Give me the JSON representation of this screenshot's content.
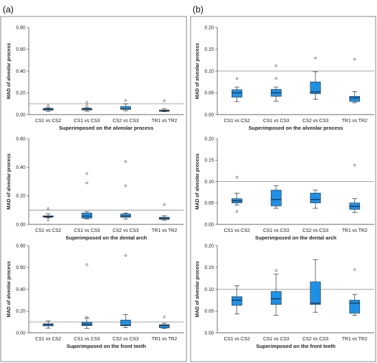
{
  "panels": [
    {
      "label": "(a)"
    },
    {
      "label": "(b)"
    }
  ],
  "colors": {
    "box_fill": "#1e90e6",
    "box_stroke": "#2a2a2a",
    "reference_line": "#888888",
    "frame": "#666666",
    "outlier": "#555555"
  },
  "chart_data": [
    {
      "id": "a1",
      "type": "box",
      "panel": "(a)",
      "title": "",
      "ylabel": "MAD of alveolar process",
      "xlabel": "Superimposed on the alveolar process",
      "ylim": [
        0,
        0.8
      ],
      "yticks": [
        0.0,
        0.2,
        0.4,
        0.6,
        0.8
      ],
      "tick_decimals": 2,
      "reference_line": 0.1,
      "grid": false,
      "categories": [
        "CS1 vs CS2",
        "CS1 vs CS3",
        "CS2 vs CS3",
        "TR1 vs TR2"
      ],
      "boxes": [
        {
          "whisker_low": 0.03,
          "q1": 0.04,
          "median": 0.05,
          "q3": 0.057,
          "whisker_high": 0.063,
          "outliers": [
            0.083
          ]
        },
        {
          "whisker_low": 0.031,
          "q1": 0.042,
          "median": 0.05,
          "q3": 0.058,
          "whisker_high": 0.063,
          "outliers": [
            0.083,
            0.112
          ]
        },
        {
          "whisker_low": 0.035,
          "q1": 0.048,
          "median": 0.052,
          "q3": 0.075,
          "whisker_high": 0.098,
          "outliers": [
            0.13
          ]
        },
        {
          "whisker_low": 0.027,
          "q1": 0.03,
          "median": 0.038,
          "q3": 0.042,
          "whisker_high": 0.053,
          "outliers": [
            0.127
          ]
        }
      ]
    },
    {
      "id": "b1",
      "type": "box",
      "panel": "(b)",
      "title": "",
      "ylabel": "MAD of alveolar process",
      "xlabel": "Superimposed on the alveolar process",
      "ylim": [
        0,
        0.2
      ],
      "yticks": [
        0.0,
        0.05,
        0.1,
        0.15,
        0.2
      ],
      "tick_decimals": 2,
      "reference_line": 0.1,
      "grid": false,
      "categories": [
        "CS1 vs CS2",
        "CS1 vs CS3",
        "CS2 vs CS3",
        "TR1 vs TR2"
      ],
      "boxes": [
        {
          "whisker_low": 0.03,
          "q1": 0.04,
          "median": 0.05,
          "q3": 0.057,
          "whisker_high": 0.063,
          "outliers": [
            0.083
          ]
        },
        {
          "whisker_low": 0.031,
          "q1": 0.042,
          "median": 0.05,
          "q3": 0.058,
          "whisker_high": 0.063,
          "outliers": [
            0.083,
            0.112
          ]
        },
        {
          "whisker_low": 0.035,
          "q1": 0.048,
          "median": 0.052,
          "q3": 0.075,
          "whisker_high": 0.098,
          "outliers": [
            0.13
          ]
        },
        {
          "whisker_low": 0.027,
          "q1": 0.03,
          "median": 0.038,
          "q3": 0.042,
          "whisker_high": 0.053,
          "outliers": [
            0.127
          ]
        }
      ]
    },
    {
      "id": "a2",
      "type": "box",
      "panel": "(a)",
      "title": "",
      "ylabel": "MAD of alveolar process",
      "xlabel": "Superimposed on the dental arch",
      "ylim": [
        0,
        0.6
      ],
      "yticks": [
        0.0,
        0.2,
        0.4,
        0.6
      ],
      "tick_decimals": 2,
      "reference_line": 0.1,
      "grid": false,
      "categories": [
        "CS1 vs CS2",
        "CS1 vs CS3",
        "CS2 vs CS3",
        "TR1 vs TR2"
      ],
      "boxes": [
        {
          "whisker_low": 0.045,
          "q1": 0.05,
          "median": 0.055,
          "q3": 0.06,
          "whisker_high": 0.073,
          "outliers": [
            0.03,
            0.11
          ]
        },
        {
          "whisker_low": 0.038,
          "q1": 0.043,
          "median": 0.058,
          "q3": 0.08,
          "whisker_high": 0.09,
          "outliers": [
            0.29,
            0.355
          ]
        },
        {
          "whisker_low": 0.038,
          "q1": 0.05,
          "median": 0.058,
          "q3": 0.073,
          "whisker_high": 0.08,
          "outliers": [
            0.27,
            0.44
          ]
        },
        {
          "whisker_low": 0.028,
          "q1": 0.035,
          "median": 0.042,
          "q3": 0.05,
          "whisker_high": 0.06,
          "outliers": [
            0.138
          ]
        }
      ]
    },
    {
      "id": "b2",
      "type": "box",
      "panel": "(b)",
      "title": "",
      "ylabel": "MAD of alveolar process",
      "xlabel": "Superimposed on the dental arch",
      "ylim": [
        0,
        0.2
      ],
      "yticks": [
        0.0,
        0.05,
        0.1,
        0.15,
        0.2
      ],
      "tick_decimals": 2,
      "reference_line": 0.1,
      "grid": false,
      "categories": [
        "CS1 vs CS2",
        "CS1 vs CS3",
        "CS2 vs CS3",
        "TR1 vs TR2"
      ],
      "boxes": [
        {
          "whisker_low": 0.045,
          "q1": 0.05,
          "median": 0.055,
          "q3": 0.06,
          "whisker_high": 0.073,
          "outliers": [
            0.03,
            0.11
          ]
        },
        {
          "whisker_low": 0.038,
          "q1": 0.043,
          "median": 0.058,
          "q3": 0.08,
          "whisker_high": 0.09,
          "outliers": []
        },
        {
          "whisker_low": 0.038,
          "q1": 0.05,
          "median": 0.058,
          "q3": 0.073,
          "whisker_high": 0.08,
          "outliers": []
        },
        {
          "whisker_low": 0.028,
          "q1": 0.035,
          "median": 0.042,
          "q3": 0.05,
          "whisker_high": 0.06,
          "outliers": [
            0.138
          ]
        }
      ]
    },
    {
      "id": "a3",
      "type": "box",
      "panel": "(a)",
      "title": "",
      "ylabel": "MAD of alveolar process",
      "xlabel": "Superimposed on the front teeth",
      "ylim": [
        0,
        0.8
      ],
      "yticks": [
        0.0,
        0.2,
        0.4,
        0.6,
        0.8
      ],
      "tick_decimals": 2,
      "reference_line": 0.1,
      "grid": false,
      "categories": [
        "CS1 vs CS2",
        "CS1 vs CS3",
        "CS2 vs CS3",
        "TR1 vs TR2"
      ],
      "boxes": [
        {
          "whisker_low": 0.043,
          "q1": 0.063,
          "median": 0.075,
          "q3": 0.083,
          "whisker_high": 0.108,
          "outliers": []
        },
        {
          "whisker_low": 0.04,
          "q1": 0.065,
          "median": 0.078,
          "q3": 0.095,
          "whisker_high": 0.135,
          "outliers": [
            0.143,
            0.625
          ]
        },
        {
          "whisker_low": 0.047,
          "q1": 0.065,
          "median": 0.068,
          "q3": 0.117,
          "whisker_high": 0.168,
          "outliers": [
            0.71
          ]
        },
        {
          "whisker_low": 0.04,
          "q1": 0.045,
          "median": 0.068,
          "q3": 0.075,
          "whisker_high": 0.088,
          "outliers": [
            0.145
          ]
        }
      ]
    },
    {
      "id": "b3",
      "type": "box",
      "panel": "(b)",
      "title": "",
      "ylabel": "MAD of alveolar process",
      "xlabel": "Superimposed on the front teeth",
      "ylim": [
        0,
        0.2
      ],
      "yticks": [
        0.0,
        0.05,
        0.1,
        0.15,
        0.2
      ],
      "tick_decimals": 2,
      "reference_line": 0.1,
      "grid": false,
      "categories": [
        "CS1 vs CS2",
        "CS1 vs CS3",
        "CS2 vs CS3",
        "TR1 vs TR2"
      ],
      "boxes": [
        {
          "whisker_low": 0.043,
          "q1": 0.063,
          "median": 0.075,
          "q3": 0.083,
          "whisker_high": 0.108,
          "outliers": []
        },
        {
          "whisker_low": 0.04,
          "q1": 0.065,
          "median": 0.078,
          "q3": 0.095,
          "whisker_high": 0.135,
          "outliers": [
            0.143
          ]
        },
        {
          "whisker_low": 0.047,
          "q1": 0.065,
          "median": 0.068,
          "q3": 0.117,
          "whisker_high": 0.168,
          "outliers": []
        },
        {
          "whisker_low": 0.04,
          "q1": 0.045,
          "median": 0.068,
          "q3": 0.075,
          "whisker_high": 0.088,
          "outliers": [
            0.145
          ]
        }
      ]
    }
  ]
}
